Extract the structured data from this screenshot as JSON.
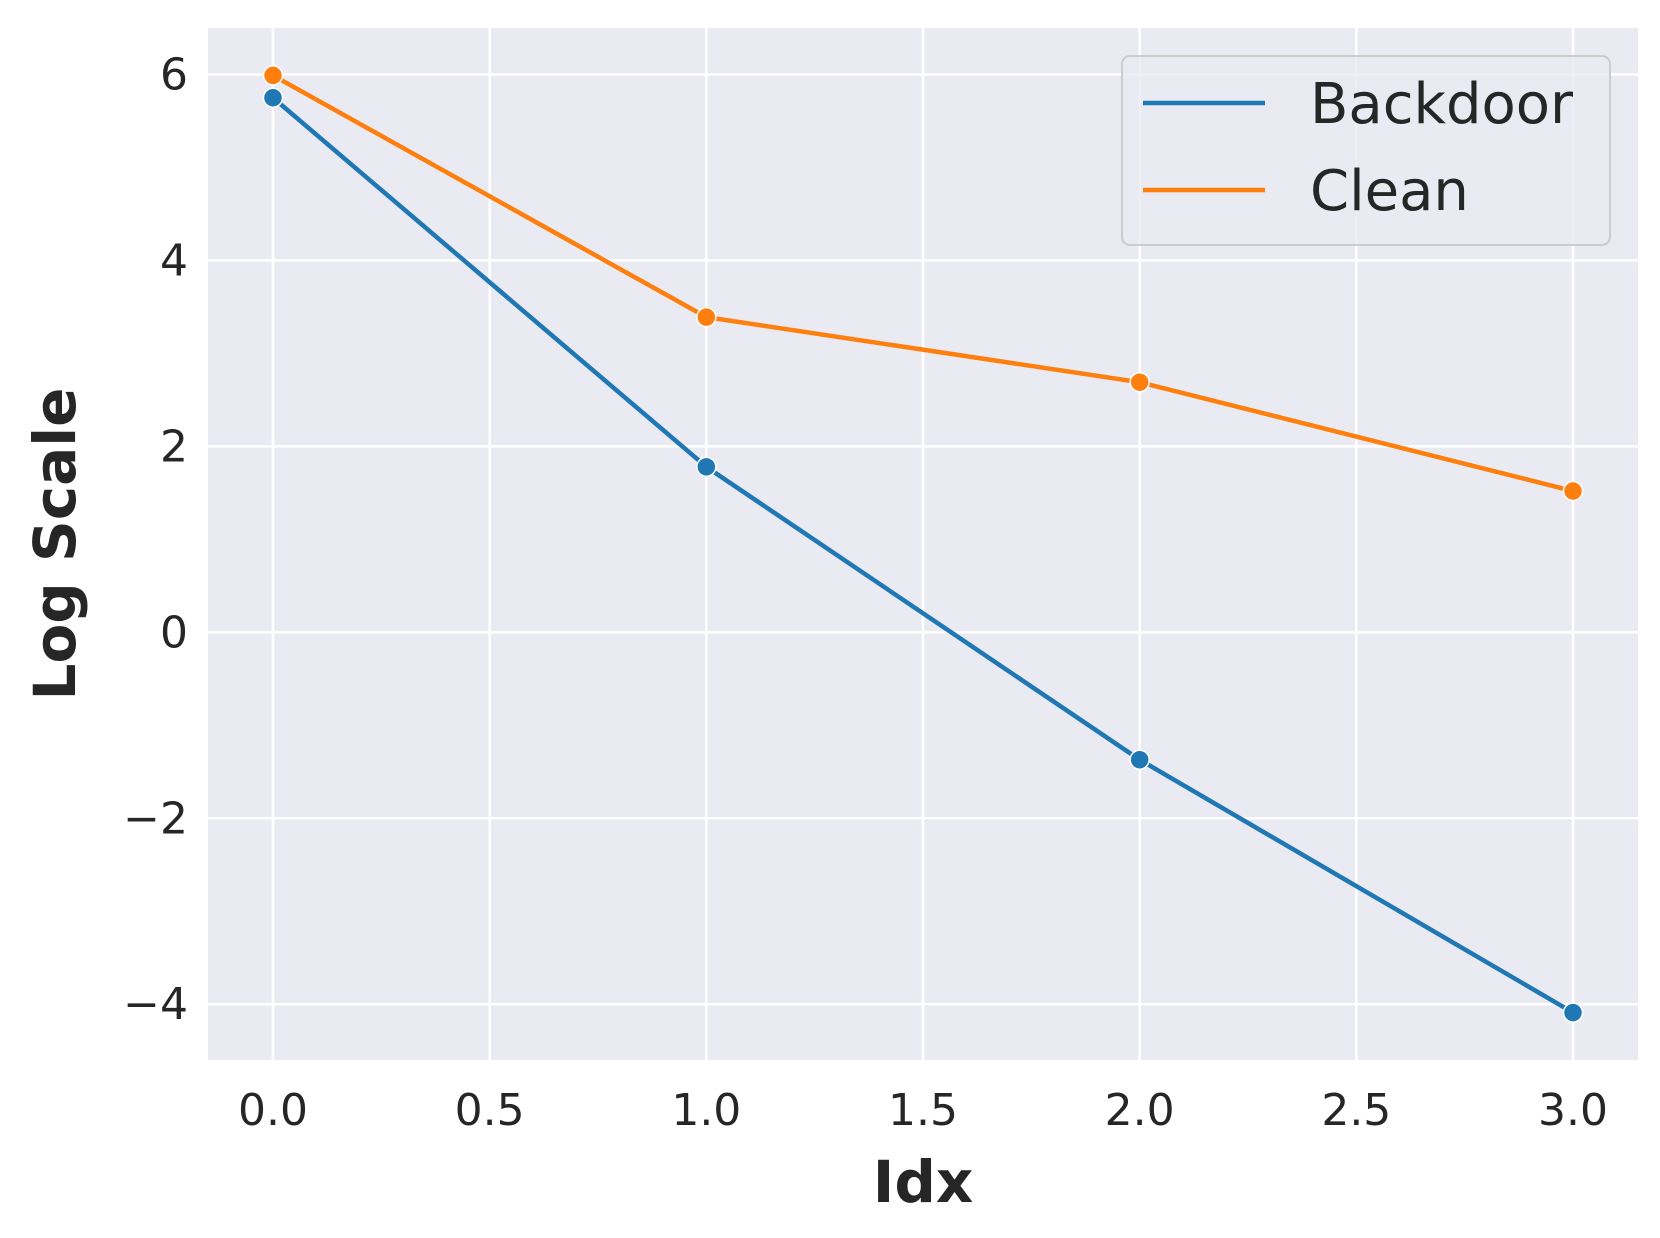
{
  "chart_data": {
    "type": "line",
    "title": "",
    "xlabel": "Idx",
    "ylabel": "Log Scale",
    "xlim": [
      -0.15,
      3.15
    ],
    "ylim": [
      -4.6,
      6.5
    ],
    "xticks": [
      0.0,
      0.5,
      1.0,
      1.5,
      2.0,
      2.5,
      3.0
    ],
    "xtick_labels": [
      "0.0",
      "0.5",
      "1.0",
      "1.5",
      "2.0",
      "2.5",
      "3.0"
    ],
    "yticks": [
      -4,
      -2,
      0,
      2,
      4,
      6
    ],
    "ytick_labels": [
      "−4",
      "−2",
      "0",
      "2",
      "4",
      "6"
    ],
    "grid": true,
    "legend_position": "top-right",
    "background": "#eaeaf2",
    "series": [
      {
        "name": "Backdoor",
        "color": "#1f77b4",
        "x": [
          0,
          1,
          2,
          3
        ],
        "y": [
          5.75,
          1.78,
          -1.37,
          -4.09
        ]
      },
      {
        "name": "Clean",
        "color": "#ff7f0e",
        "x": [
          0,
          1,
          2,
          3
        ],
        "y": [
          5.99,
          3.39,
          2.69,
          1.52
        ]
      }
    ]
  }
}
